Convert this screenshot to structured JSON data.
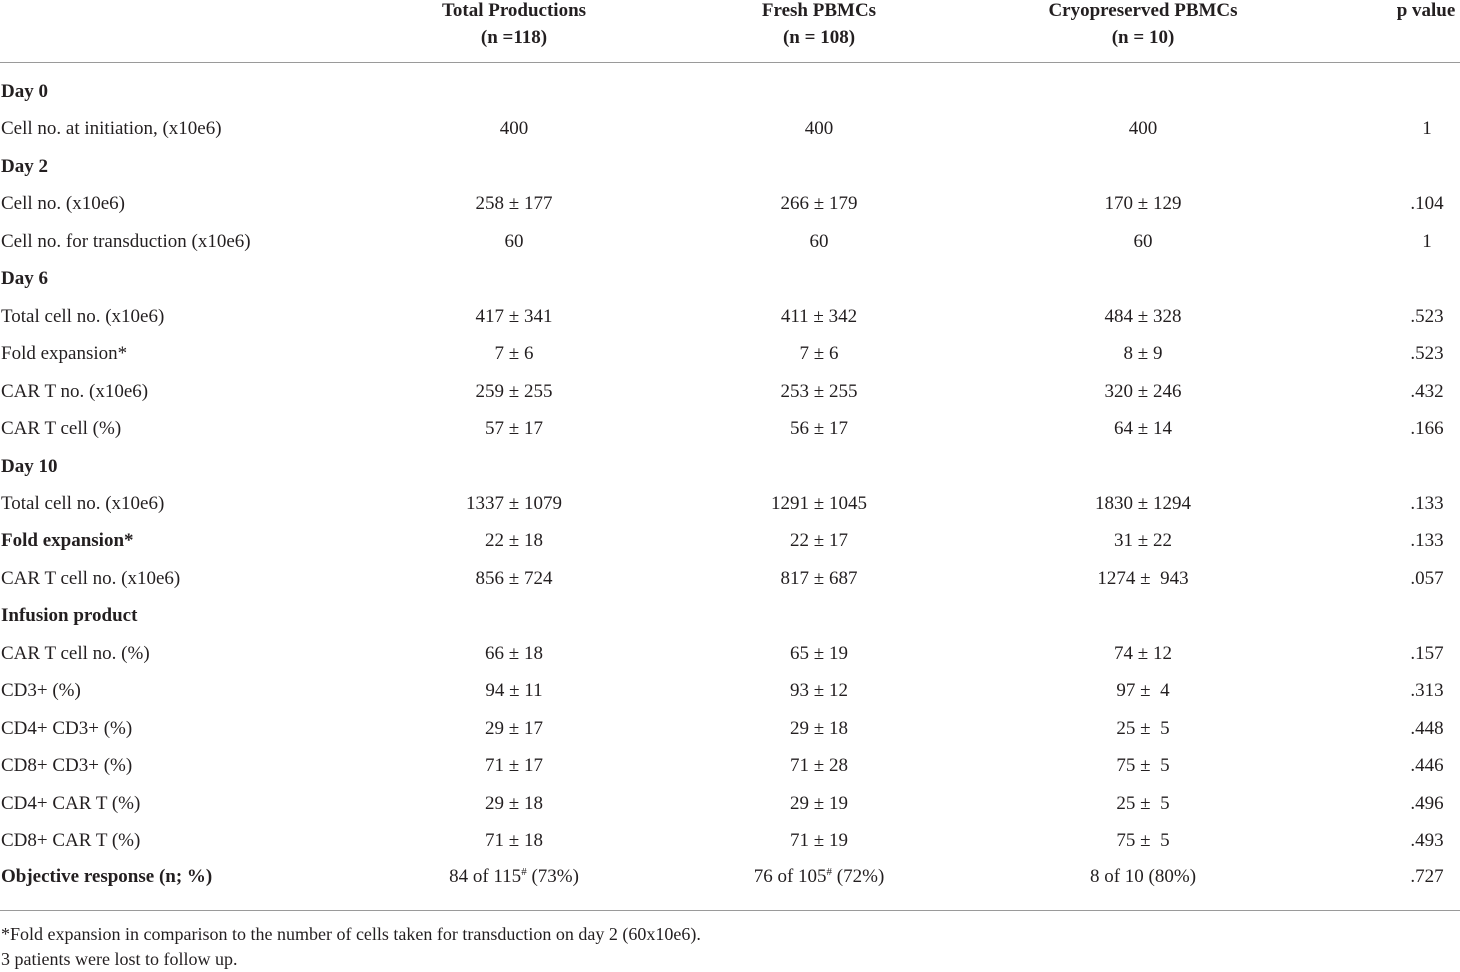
{
  "header": {
    "col1_title": "Total Productions",
    "col1_n": "(n =118)",
    "col2_title": "Fresh PBMCs",
    "col2_n": "(n = 108)",
    "col3_title": "Cryopreserved PBMCs",
    "col3_n": "(n = 10)",
    "col4_title": "p value"
  },
  "rows": [
    {
      "type": "section",
      "label": "Day 0"
    },
    {
      "type": "data",
      "label": "Cell no. at initiation, (x10e6)",
      "total": "400",
      "fresh": "400",
      "cryo": "400",
      "p": "1"
    },
    {
      "type": "section",
      "label": "Day 2"
    },
    {
      "type": "data",
      "label": "Cell no. (x10e6)",
      "total": "258 ± 177",
      "fresh": "266 ± 179",
      "cryo": "170 ± 129",
      "p": ".104"
    },
    {
      "type": "data",
      "label": "Cell no. for transduction (x10e6)",
      "total": "60",
      "fresh": "60",
      "cryo": "60",
      "p": "1"
    },
    {
      "type": "section",
      "label": "Day 6"
    },
    {
      "type": "data",
      "label": "Total cell no. (x10e6)",
      "total": "417 ± 341",
      "fresh": "411 ± 342",
      "cryo": "484 ± 328",
      "p": ".523"
    },
    {
      "type": "data",
      "label": "Fold expansion*",
      "total": "7 ± 6",
      "fresh": "7 ± 6",
      "cryo": "8 ± 9",
      "p": ".523"
    },
    {
      "type": "data",
      "label": "CAR T no. (x10e6)",
      "total": "259 ± 255",
      "fresh": "253 ± 255",
      "cryo": "320 ± 246",
      "p": ".432"
    },
    {
      "type": "data",
      "label": "CAR T cell (%)",
      "total": "57 ± 17",
      "fresh": "56 ± 17",
      "cryo": "64 ± 14",
      "p": ".166"
    },
    {
      "type": "section",
      "label": "Day 10"
    },
    {
      "type": "data",
      "label": "Total cell no. (x10e6)",
      "total": "1337 ± 1079",
      "fresh": "1291 ± 1045",
      "cryo": "1830 ± 1294",
      "p": ".133"
    },
    {
      "type": "data-bold",
      "label": "Fold expansion*",
      "total": "22 ± 18",
      "fresh": "22 ± 17",
      "cryo": "31 ± 22",
      "p": ".133"
    },
    {
      "type": "data",
      "label": "CAR T cell no. (x10e6)",
      "total": "856 ± 724",
      "fresh": "817 ± 687",
      "cryo": "1274 ±  943",
      "p": ".057"
    },
    {
      "type": "section",
      "label": "Infusion product"
    },
    {
      "type": "data",
      "label": "CAR T cell no. (%)",
      "total": "66 ± 18",
      "fresh": "65 ± 19",
      "cryo": "74 ± 12",
      "p": ".157"
    },
    {
      "type": "data",
      "label": "CD3+ (%)",
      "total": "94 ± 11",
      "fresh": "93 ± 12",
      "cryo": "97 ±  4",
      "p": ".313"
    },
    {
      "type": "data",
      "label": "CD4+ CD3+ (%)",
      "total": "29 ± 17",
      "fresh": "29 ± 18",
      "cryo": "25 ±  5",
      "p": ".448"
    },
    {
      "type": "data",
      "label": "CD8+ CD3+ (%)",
      "total": "71 ± 17",
      "fresh": "71 ± 28",
      "cryo": "75 ±  5",
      "p": ".446"
    },
    {
      "type": "data",
      "label": "CD4+ CAR T (%)",
      "total": "29 ± 18",
      "fresh": "29 ± 19",
      "cryo": "25 ±  5",
      "p": ".496"
    },
    {
      "type": "data",
      "label": "CD8+ CAR T (%)",
      "total": "71 ± 18",
      "fresh": "71 ± 19",
      "cryo": "75 ±  5",
      "p": ".493"
    }
  ],
  "objective": {
    "label": "Objective response (n; %)",
    "total_a": "84 of 115",
    "total_sup": "#",
    "total_b": " (73%)",
    "fresh_a": "76 of 105",
    "fresh_sup": "#",
    "fresh_b": " (72%)",
    "cryo": "8 of 10 (80%)",
    "p": ".727"
  },
  "footnotes": {
    "line1": "*Fold expansion in comparison to the number of cells taken for transduction on day 2 (60x10e6).",
    "line2": "3 patients were lost to follow up."
  }
}
